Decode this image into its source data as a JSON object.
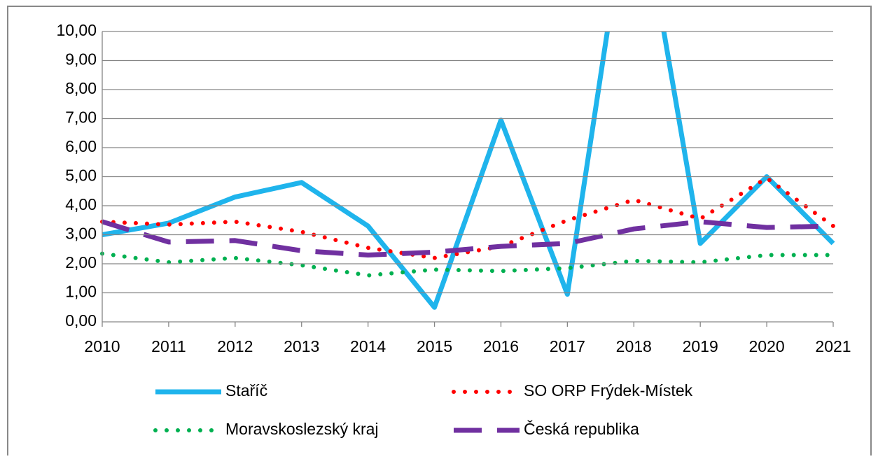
{
  "chart_data": {
    "type": "line",
    "categories": [
      "2010",
      "2011",
      "2012",
      "2013",
      "2014",
      "2015",
      "2016",
      "2017",
      "2018",
      "2019",
      "2020",
      "2021"
    ],
    "series": [
      {
        "name": "Staříč",
        "color": "#1fb4ec",
        "style": "solid",
        "values": [
          3.0,
          3.4,
          4.3,
          4.8,
          3.3,
          0.5,
          6.95,
          0.95,
          16,
          2.7,
          5.0,
          2.7
        ]
      },
      {
        "name": "SO ORP Frýdek-Místek",
        "color": "#ff0000",
        "style": "dotted",
        "values": [
          3.45,
          3.35,
          3.45,
          3.1,
          2.55,
          2.2,
          2.6,
          3.5,
          4.2,
          3.55,
          4.95,
          3.3
        ]
      },
      {
        "name": "Moravskoslezský kraj",
        "color": "#00b050",
        "style": "dotted",
        "values": [
          2.35,
          2.05,
          2.2,
          1.95,
          1.6,
          1.8,
          1.75,
          1.85,
          2.1,
          2.05,
          2.3,
          2.3
        ]
      },
      {
        "name": "Česká republika",
        "color": "#7030a0",
        "style": "dashed",
        "values": [
          3.45,
          2.75,
          2.8,
          2.45,
          2.3,
          2.4,
          2.6,
          2.7,
          3.2,
          3.45,
          3.25,
          3.3
        ]
      }
    ],
    "ylim": [
      0,
      10
    ],
    "yticks": [
      {
        "value": 0,
        "label": "0,00"
      },
      {
        "value": 1,
        "label": "1,00"
      },
      {
        "value": 2,
        "label": "2,00"
      },
      {
        "value": 3,
        "label": "3,00"
      },
      {
        "value": 4,
        "label": "4,00"
      },
      {
        "value": 5,
        "label": "5,00"
      },
      {
        "value": 6,
        "label": "6,00"
      },
      {
        "value": 7,
        "label": "7,00"
      },
      {
        "value": 8,
        "label": "8,00"
      },
      {
        "value": 9,
        "label": "9,00"
      },
      {
        "value": 10,
        "label": "10,00"
      }
    ],
    "grid": true
  }
}
